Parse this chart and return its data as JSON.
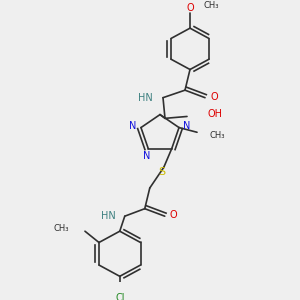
{
  "background_color": "#efefef",
  "figure_size": [
    3.0,
    3.0
  ],
  "dpi": 100,
  "colors": {
    "C": "#303030",
    "N": "#1010dd",
    "O": "#dd0000",
    "S": "#ccbb00",
    "Cl": "#228822",
    "H": "#3d8080",
    "bond": "#303030"
  },
  "layout": {
    "xlim": [
      0,
      300
    ],
    "ylim": [
      0,
      300
    ]
  }
}
